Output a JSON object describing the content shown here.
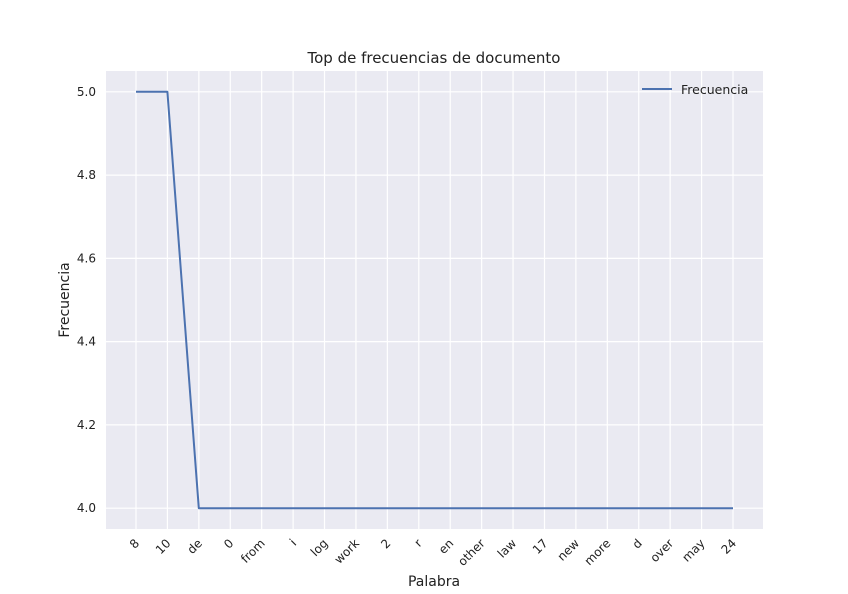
{
  "chart_data": {
    "type": "line",
    "title": "Top de frecuencias de documento",
    "xlabel": "Palabra",
    "ylabel": "Frecuencia",
    "categories": [
      "8",
      "10",
      "de",
      "0",
      "from",
      "i",
      "log",
      "work",
      "2",
      "r",
      "en",
      "other",
      "law",
      "17",
      "new",
      "more",
      "d",
      "over",
      "may",
      "24"
    ],
    "series": [
      {
        "name": "Frecuencia",
        "color": "#4c72b0",
        "values": [
          5,
          5,
          4,
          4,
          4,
          4,
          4,
          4,
          4,
          4,
          4,
          4,
          4,
          4,
          4,
          4,
          4,
          4,
          4,
          4
        ]
      }
    ],
    "yticks": [
      "4.0",
      "4.2",
      "4.4",
      "4.6",
      "4.8",
      "5.0"
    ],
    "ylim": [
      3.95,
      5.05
    ],
    "grid": true,
    "legend_position": "top-right",
    "background_color": "#eaeaf2",
    "grid_color": "#ffffff"
  }
}
